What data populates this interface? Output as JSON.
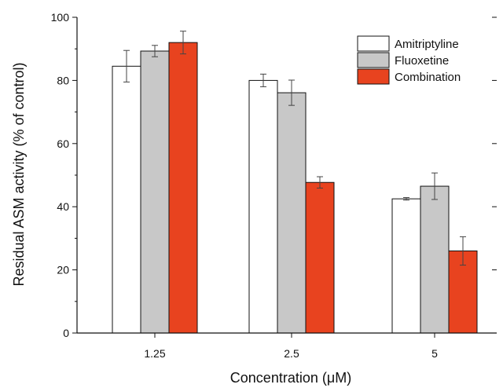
{
  "chart_data": {
    "type": "bar",
    "categories": [
      "1.25",
      "2.5",
      "5"
    ],
    "series": [
      {
        "name": "Amitriptyline",
        "color": "#ffffff",
        "values": [
          84.5,
          80.0,
          42.5
        ],
        "errors": [
          5.0,
          2.0,
          0.4
        ]
      },
      {
        "name": "Fluoxetine",
        "color": "#c8c8c8",
        "values": [
          89.3,
          76.1,
          46.5
        ],
        "errors": [
          1.8,
          4.0,
          4.2
        ]
      },
      {
        "name": "Combination",
        "color": "#e8431f",
        "values": [
          92.0,
          47.7,
          26.0
        ],
        "errors": [
          3.6,
          1.8,
          4.5
        ]
      }
    ],
    "xlabel": "Concentration (μM)",
    "ylabel": "Residual ASM activity (% of control)",
    "ylim": [
      0,
      100
    ],
    "yticks": [
      0,
      20,
      40,
      60,
      80,
      100
    ],
    "legend_position": "top-right",
    "grid": false
  }
}
